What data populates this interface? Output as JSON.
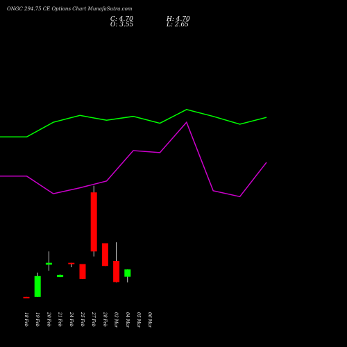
{
  "header": {
    "title": "ONGC 294.75 CE Options  Chart MunafaSutra.com",
    "close": "C: 4.70",
    "open": "O: 3.55",
    "high": "H: 4.70",
    "low": "L: 2.65"
  },
  "colors": {
    "background": "#000000",
    "line_upper": "#00ff00",
    "line_lower": "#cc00cc",
    "candle_up": "#00ff00",
    "candle_down": "#ff0000",
    "wick": "#ffffff",
    "text": "#ffffff"
  },
  "chart_data": {
    "type": "candlestick",
    "categories": [
      "18 Feb",
      "19 Feb",
      "20 Feb",
      "21 Feb",
      "24 Feb",
      "25 Feb",
      "27 Feb",
      "28 Feb",
      "03 Mar",
      "04 Mar",
      "05 Mar",
      "06 Mar"
    ],
    "candles": [
      {
        "date": "18 Feb",
        "open": 0.35,
        "high": 0.35,
        "low": 0.25,
        "close": 0.25
      },
      {
        "date": "19 Feb",
        "open": 0.35,
        "high": 4.2,
        "low": 0.35,
        "close": 3.65
      },
      {
        "date": "20 Feb",
        "open": 5.45,
        "high": 7.55,
        "low": 4.5,
        "close": 5.75
      },
      {
        "date": "21 Feb",
        "open": 3.5,
        "high": 3.9,
        "low": 3.5,
        "close": 3.85
      },
      {
        "date": "24 Feb",
        "open": 5.75,
        "high": 5.75,
        "low": 5.05,
        "close": 5.55
      },
      {
        "date": "25 Feb",
        "open": 5.55,
        "high": 5.55,
        "low": 3.2,
        "close": 3.2
      },
      {
        "date": "27 Feb",
        "open": 16.9,
        "high": 17.95,
        "low": 6.75,
        "close": 7.55
      },
      {
        "date": "28 Feb",
        "open": 8.85,
        "high": 8.85,
        "low": 5.25,
        "close": 5.25
      },
      {
        "date": "03 Mar",
        "open": 6.05,
        "high": 9.0,
        "low": 2.65,
        "close": 2.7
      },
      {
        "date": "04 Mar",
        "open": 3.55,
        "high": 4.7,
        "low": 2.65,
        "close": 4.7
      }
    ],
    "lines": [
      {
        "values": [
          4.7,
          4.7,
          4.85,
          4.92,
          4.87,
          4.91,
          4.84,
          4.98,
          4.91,
          4.83,
          4.9
        ]
      },
      {
        "values": [
          4.3,
          4.3,
          4.12,
          4.18,
          4.25,
          4.56,
          4.54,
          4.85,
          4.15,
          4.09,
          4.44
        ]
      }
    ]
  }
}
